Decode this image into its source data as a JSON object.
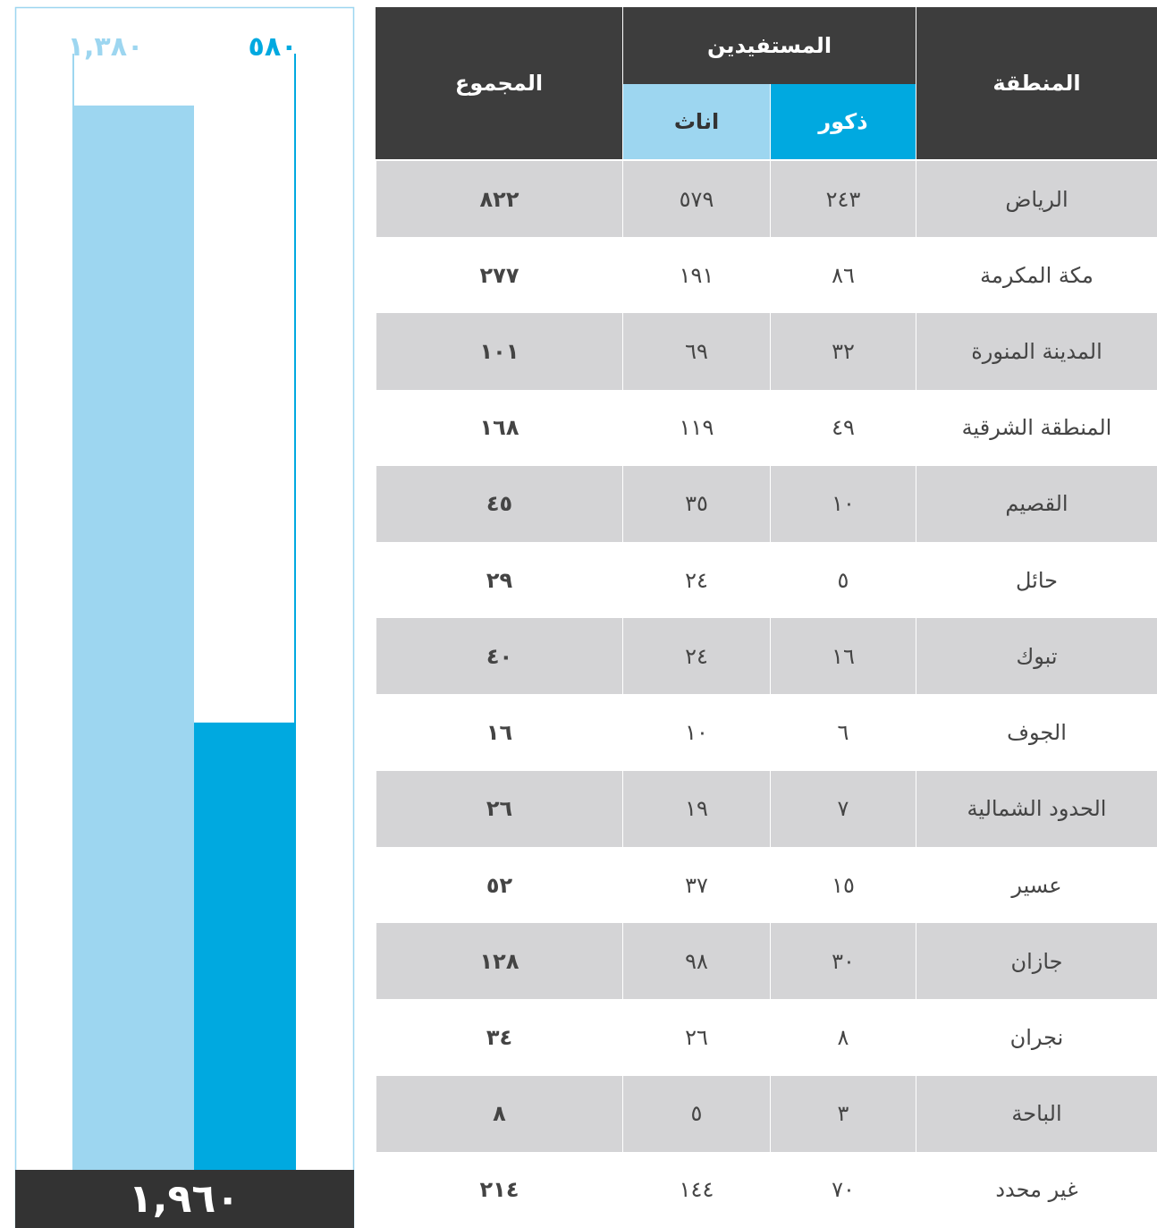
{
  "chart_data": {
    "type": "bar",
    "values": [
      1380,
      580
    ],
    "value_labels": [
      "١,٣٨٠",
      "٥٨٠"
    ],
    "colors": [
      "#9dd6f0",
      "#00a9e0"
    ],
    "ylim": [
      0,
      1380
    ],
    "total": {
      "value": 1960,
      "label": "١,٩٦٠"
    }
  },
  "table": {
    "header": {
      "region": "المنطقة",
      "beneficiaries": "المستفيدين",
      "male": "ذكور",
      "female": "اناث",
      "total": "المجموع"
    },
    "rows": [
      [
        "الرياض",
        "٢٤٣",
        "٥٧٩",
        "٨٢٢"
      ],
      [
        "مكة المكرمة",
        "٨٦",
        "١٩١",
        "٢٧٧"
      ],
      [
        "المدينة المنورة",
        "٣٢",
        "٦٩",
        "١٠١"
      ],
      [
        "المنطقة الشرقية",
        "٤٩",
        "١١٩",
        "١٦٨"
      ],
      [
        "القصيم",
        "١٠",
        "٣٥",
        "٤٥"
      ],
      [
        "حائل",
        "٥",
        "٢٤",
        "٢٩"
      ],
      [
        "تبوك",
        "١٦",
        "٢٤",
        "٤٠"
      ],
      [
        "الجوف",
        "٦",
        "١٠",
        "١٦"
      ],
      [
        "الحدود الشمالية",
        "٧",
        "١٩",
        "٢٦"
      ],
      [
        "عسير",
        "١٥",
        "٣٧",
        "٥٢"
      ],
      [
        "جازان",
        "٣٠",
        "٩٨",
        "١٢٨"
      ],
      [
        "نجران",
        "٨",
        "٢٦",
        "٣٤"
      ],
      [
        "الباحة",
        "٣",
        "٥",
        "٨"
      ],
      [
        "غير محدد",
        "٧٠",
        "١٤٤",
        "٢١٤"
      ]
    ]
  }
}
